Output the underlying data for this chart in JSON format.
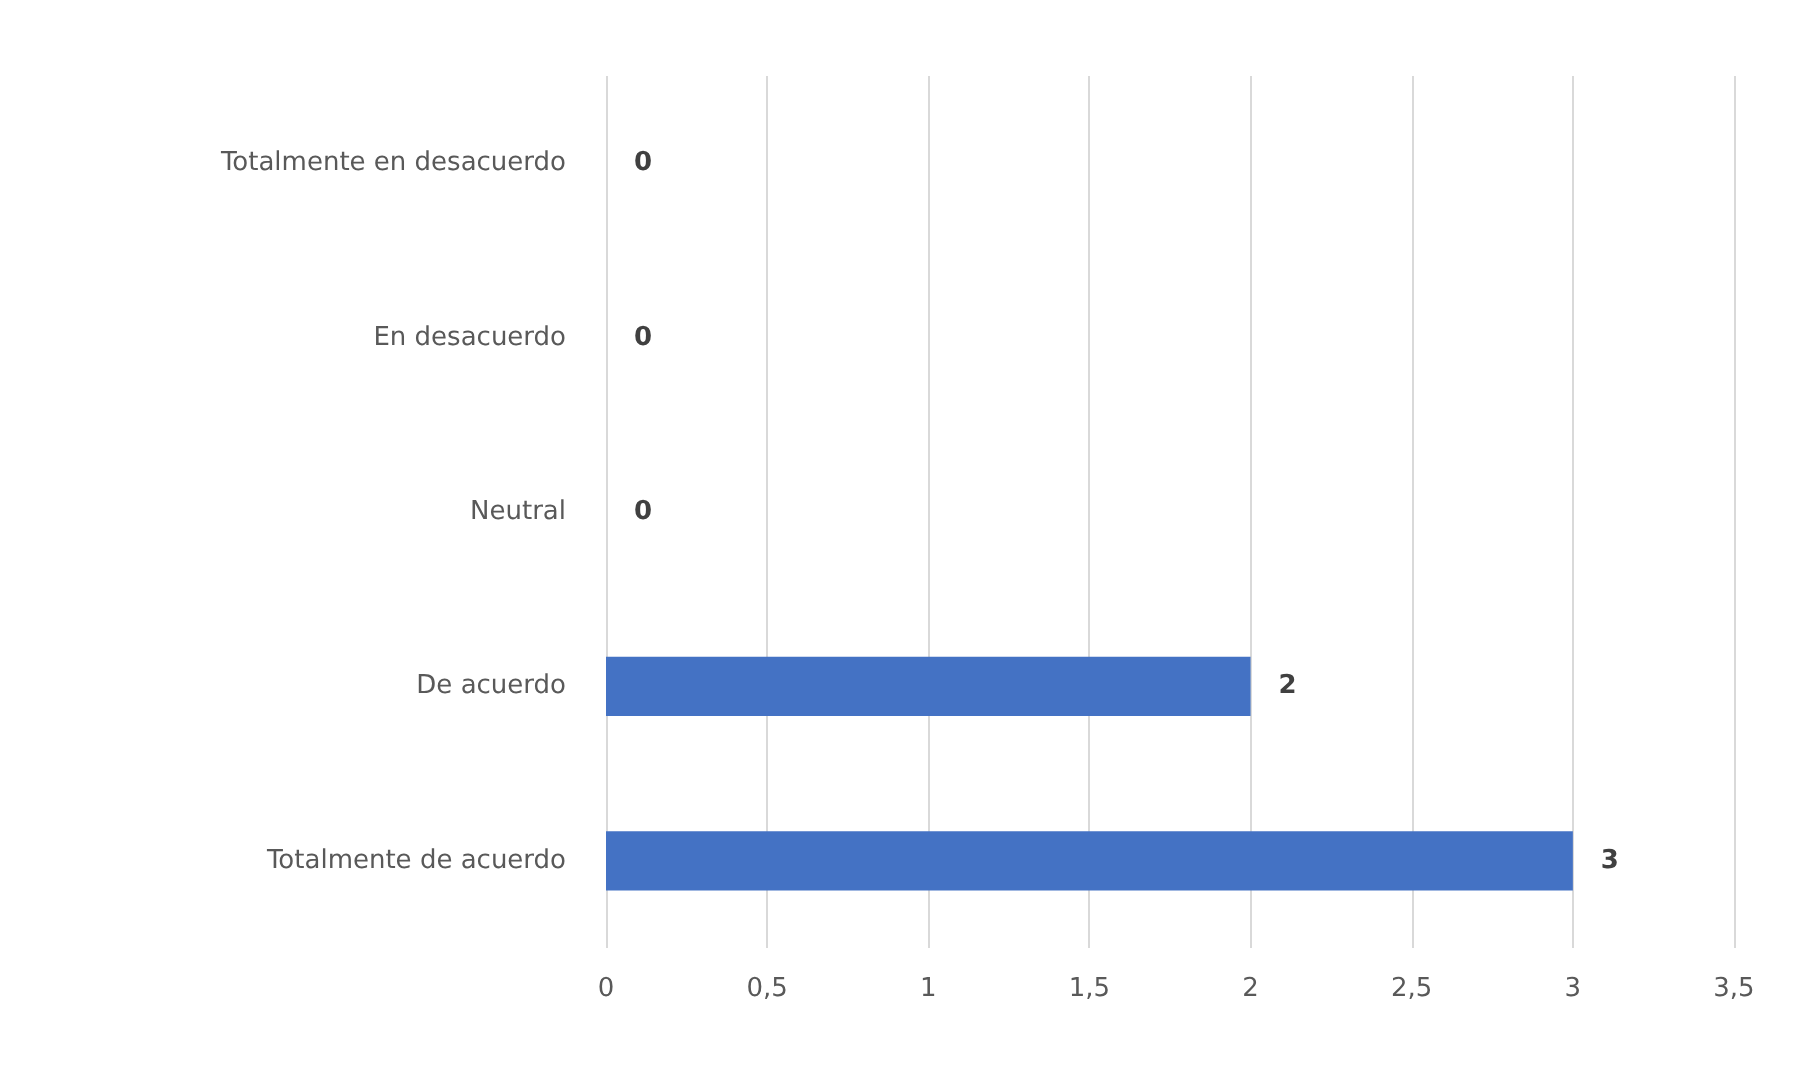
{
  "chart_data": {
    "type": "bar",
    "orientation": "horizontal",
    "categories": [
      "Totalmente en desacuerdo",
      "En desacuerdo",
      "Neutral",
      "De acuerdo",
      "Totalmente de acuerdo"
    ],
    "values": [
      0,
      0,
      0,
      2,
      3
    ],
    "color": "#4472c4",
    "xlim": [
      0,
      3.5
    ],
    "xticks": [
      0,
      {
        "value": 0.5,
        "label": "0,5"
      },
      1,
      {
        "value": 1.5,
        "label": "1,5"
      },
      2,
      {
        "value": 2.5,
        "label": "2,5"
      },
      3,
      {
        "value": 3.5,
        "label": "3,5"
      }
    ],
    "grid": "x",
    "data_labels": true
  }
}
